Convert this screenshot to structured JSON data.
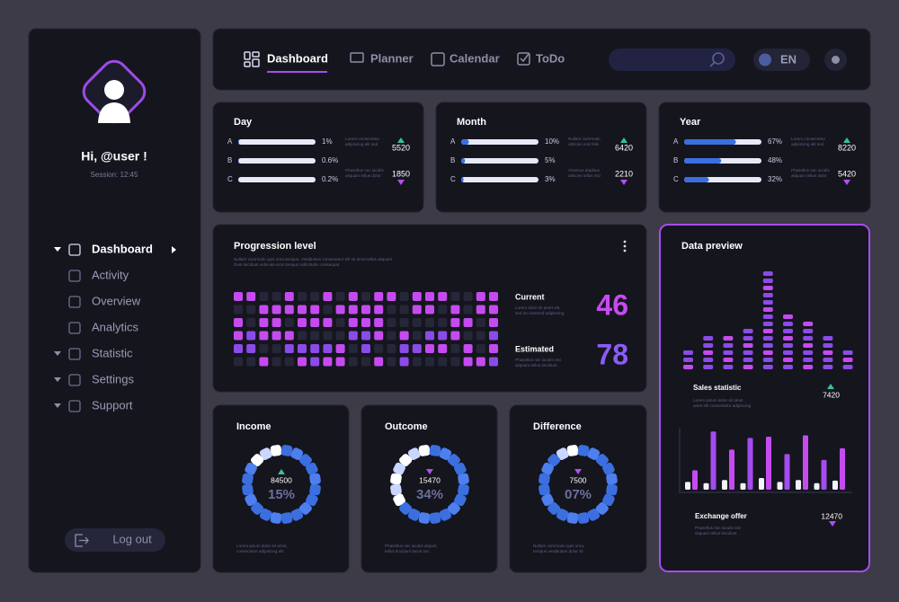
{
  "sidebar": {
    "greeting": "Hi, @user !",
    "session": "Session: 12:45",
    "nav": [
      "Dashboard",
      "Activity",
      "Overview",
      "Analytics",
      "Statistic",
      "Settings",
      "Support"
    ],
    "logout": "Log out"
  },
  "topbar": {
    "tabs": [
      "Dashboard",
      "Planner",
      "Calendar",
      "ToDo"
    ],
    "language": "EN"
  },
  "period_cards": [
    {
      "title": "Day",
      "rows": [
        "A",
        "B",
        "C"
      ],
      "values": [
        1,
        0.6,
        0.2
      ],
      "value_labels": [
        "1%",
        "0.6%",
        "0.2%"
      ],
      "stats": [
        5520,
        1850
      ],
      "notes": [
        [
          "Lorem consectetur",
          "adipiscing elit sed"
        ],
        [
          "Phasellus nec iaculis",
          "aliquam tellus dolor"
        ]
      ]
    },
    {
      "title": "Month",
      "rows": [
        "A",
        "B",
        "C"
      ],
      "values": [
        10,
        5,
        3
      ],
      "value_labels": [
        "10%",
        "5%",
        "3%"
      ],
      "stats": [
        6420,
        2210
      ],
      "notes": [
        [
          "Nullam commodo",
          "ultricies erat felis"
        ],
        [
          "Vivamus dapibus",
          "ultricies tellus nisi"
        ]
      ]
    },
    {
      "title": "Year",
      "rows": [
        "A",
        "B",
        "C"
      ],
      "values": [
        67,
        48,
        32
      ],
      "value_labels": [
        "67%",
        "48%",
        "32%"
      ],
      "stats": [
        8220,
        5420
      ],
      "notes": [
        [
          "Lorem consectetur",
          "adipiscing elit sed"
        ],
        [
          "Phasellus nec iaculis",
          "aliquam tellus dolor"
        ]
      ]
    }
  ],
  "progression": {
    "title": "Progression level",
    "subtitle": [
      "Nullam commodo quis urna tempus, Vestibulum consectetur elit sit amet tellus aliquam",
      "Duis tincidunt vehicula eros tempus sollicitudin consequat"
    ],
    "current_label": "Current",
    "current": 46,
    "current_note": [
      "Lorem dolor sit amet elit,",
      "sed do eiusmod adipiscing."
    ],
    "estimated_label": "Estimated",
    "estimated": 78,
    "estimated_note": [
      "Phasellus nec iaculis nisi",
      "aliquam tellus tincidunt."
    ]
  },
  "rings": [
    {
      "title": "Income",
      "value": 84500,
      "percent": 15,
      "percent_label": "15%",
      "note": [
        "Lorem ipsum dolor sit amet,",
        "consectetur adipiscing elit"
      ]
    },
    {
      "title": "Outcome",
      "value": 15470,
      "percent": 34,
      "percent_label": "34%",
      "note": [
        "Phasellus nec iaculis aliquet,",
        "tellus tincidunt lacus nec"
      ]
    },
    {
      "title": "Difference",
      "value": 7500,
      "percent": 7,
      "percent_label": "07%",
      "note": [
        "Nullam commodo quis urna,",
        "tempus vestibulum dolor sit"
      ]
    }
  ],
  "data_preview": {
    "title": "Data preview",
    "columns": [
      3,
      5,
      5,
      6,
      14,
      8,
      7,
      5,
      3
    ],
    "sales": {
      "label": "Sales statistic",
      "value": 7420,
      "note": [
        "Lorem ipsum dolor sit amet",
        "amet elit consectetur adipiscing"
      ]
    },
    "bars_light": [
      12,
      10,
      15,
      10,
      18,
      12,
      15,
      10,
      14
    ],
    "bars_purple": [
      30,
      90,
      62,
      80,
      82,
      55,
      84,
      46,
      64
    ],
    "exchange": {
      "label": "Exchange offer",
      "value": 12470,
      "note": [
        "Phasellus nec iaculis nisi",
        "aliquam tellus tincidunt"
      ]
    }
  }
}
